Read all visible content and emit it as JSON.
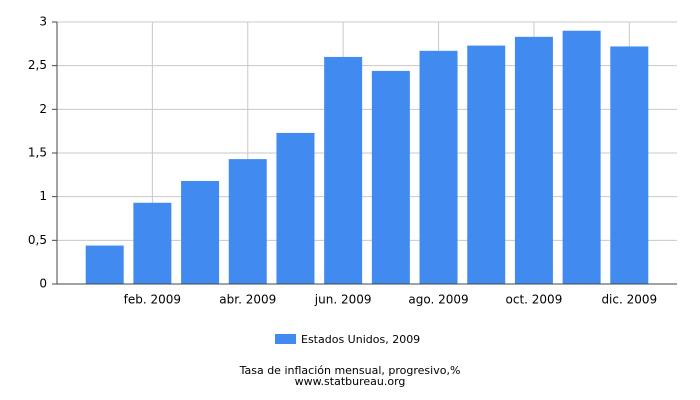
{
  "chart_data": {
    "type": "bar",
    "title": "Tasa de inflación mensual, progresivo,%",
    "source": "www.statbureau.org",
    "categories": [
      null,
      "feb. 2009",
      null,
      "abr. 2009",
      null,
      "jun. 2009",
      null,
      "ago. 2009",
      null,
      "oct. 2009",
      null,
      "dic. 2009"
    ],
    "series": [
      {
        "name": "Estados Unidos, 2009",
        "color": "#418bf0",
        "values": [
          0.44,
          0.93,
          1.18,
          1.43,
          1.73,
          2.6,
          2.44,
          2.67,
          2.73,
          2.83,
          2.9,
          2.72
        ]
      }
    ],
    "ylim": [
      0,
      3
    ],
    "yticks": [
      0,
      {
        "value": 0.5,
        "label": "0,5"
      },
      1,
      {
        "value": 1.5,
        "label": "1,5"
      },
      2,
      {
        "value": 2.5,
        "label": "2,5"
      },
      3
    ],
    "grid": true
  }
}
